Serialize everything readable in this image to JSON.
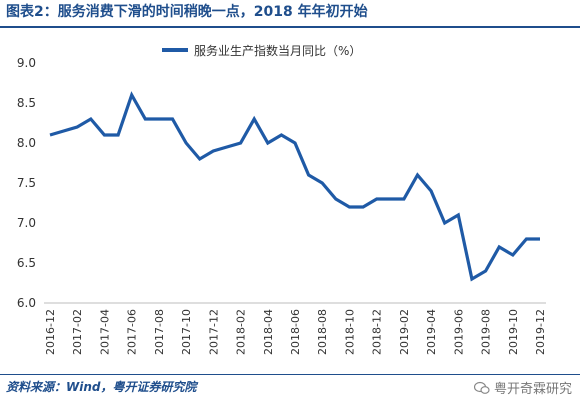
{
  "page": {
    "title": "图表2：服务消费下滑的时间稍晚一点，2018 年年初开始",
    "source": "资料来源：Wind，粤开证券研究院",
    "watermark": "粤开奇霖研究"
  },
  "chart_data": {
    "type": "line",
    "title": "",
    "xlabel": "",
    "ylabel": "",
    "ylim": [
      6.0,
      9.0
    ],
    "yticks": [
      "6.0",
      "6.5",
      "7.0",
      "7.5",
      "8.0",
      "8.5",
      "9.0"
    ],
    "xtick_labels": [
      "2016-12",
      "2017-02",
      "2017-04",
      "2017-06",
      "2017-08",
      "2017-10",
      "2017-12",
      "2018-02",
      "2018-04",
      "2018-06",
      "2018-08",
      "2018-10",
      "2018-12",
      "2019-02",
      "2019-04",
      "2019-06",
      "2019-08",
      "2019-10",
      "2019-12"
    ],
    "x": [
      "2016-12",
      "2017-01",
      "2017-02",
      "2017-03",
      "2017-04",
      "2017-05",
      "2017-06",
      "2017-07",
      "2017-08",
      "2017-09",
      "2017-10",
      "2017-11",
      "2017-12",
      "2018-01",
      "2018-02",
      "2018-03",
      "2018-04",
      "2018-05",
      "2018-06",
      "2018-07",
      "2018-08",
      "2018-09",
      "2018-10",
      "2018-11",
      "2018-12",
      "2019-01",
      "2019-02",
      "2019-03",
      "2019-04",
      "2019-05",
      "2019-06",
      "2019-07",
      "2019-08",
      "2019-09",
      "2019-10",
      "2019-11",
      "2019-12"
    ],
    "series": [
      {
        "name": "服务业生产指数当月同比（%）",
        "color": "#1f5aa6",
        "values": [
          8.1,
          8.15,
          8.2,
          8.3,
          8.1,
          8.1,
          8.6,
          8.3,
          8.3,
          8.3,
          8.0,
          7.8,
          7.9,
          7.95,
          8.0,
          8.3,
          8.0,
          8.1,
          8.0,
          7.6,
          7.5,
          7.3,
          7.2,
          7.2,
          7.3,
          7.3,
          7.3,
          7.6,
          7.4,
          7.0,
          7.1,
          6.3,
          6.4,
          6.7,
          6.6,
          6.8,
          6.8
        ]
      }
    ],
    "grid": false,
    "legend": "top-center"
  }
}
